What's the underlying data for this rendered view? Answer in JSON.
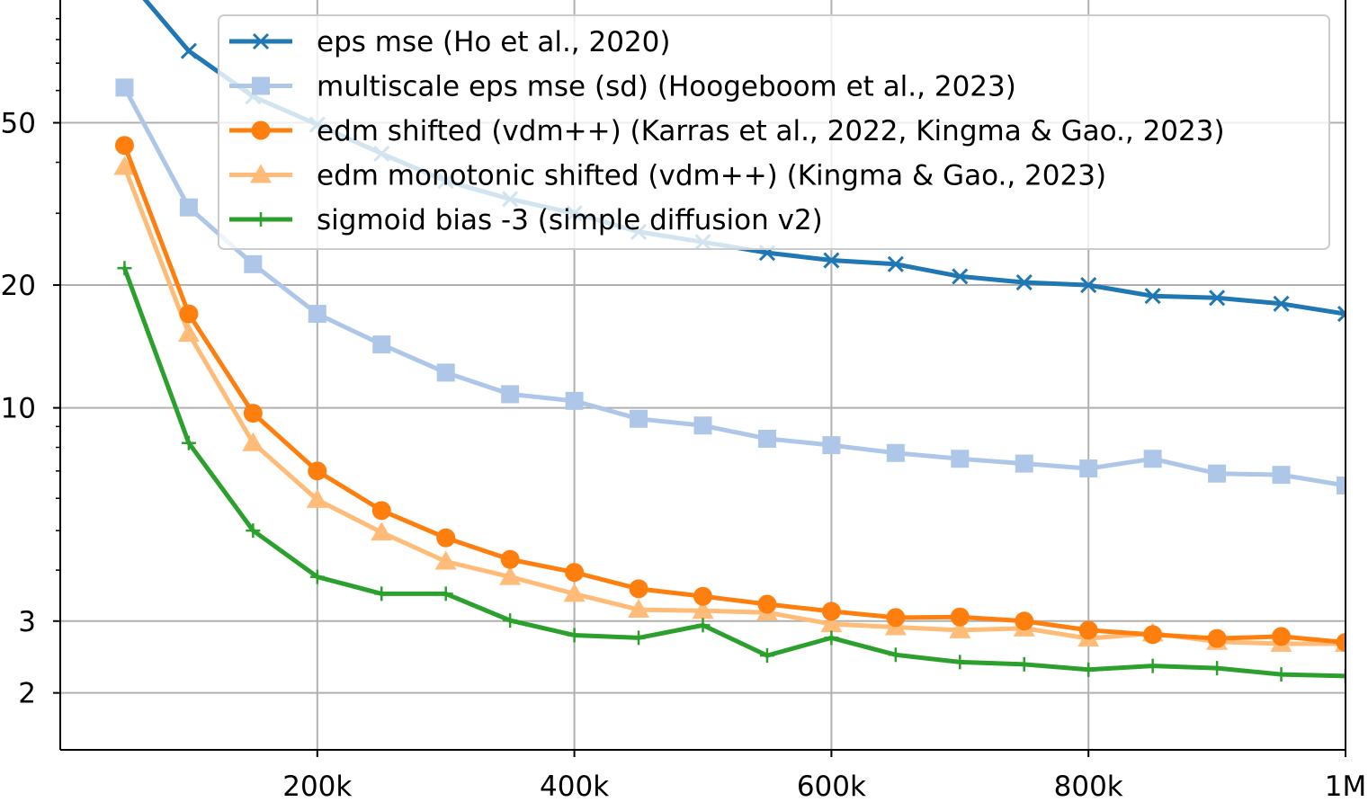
{
  "chart_data": {
    "type": "line",
    "title": "",
    "xlabel": "",
    "ylabel": "",
    "x_scale": "linear",
    "y_scale": "log",
    "xlim": [
      0,
      1000000
    ],
    "ylim": [
      1.45,
      100
    ],
    "grid": true,
    "legend_position": "top-right",
    "x_ticks": [
      {
        "value": 200000,
        "label": "200k"
      },
      {
        "value": 400000,
        "label": "400k"
      },
      {
        "value": 600000,
        "label": "600k"
      },
      {
        "value": 800000,
        "label": "800k"
      },
      {
        "value": 1000000,
        "label": "1M"
      }
    ],
    "y_ticks": [
      {
        "value": 2,
        "label": "2"
      },
      {
        "value": 3,
        "label": "3"
      },
      {
        "value": 10,
        "label": "10"
      },
      {
        "value": 20,
        "label": "20"
      },
      {
        "value": 50,
        "label": "50"
      }
    ],
    "x": [
      50000,
      100000,
      150000,
      200000,
      250000,
      300000,
      350000,
      400000,
      450000,
      500000,
      550000,
      600000,
      650000,
      700000,
      750000,
      800000,
      850000,
      900000,
      950000,
      1000000
    ],
    "series": [
      {
        "name": "eps mse (Ho et al., 2020)",
        "color": "#1f77b4",
        "marker": "x",
        "values": [
          115,
          75,
          58,
          49.5,
          42,
          36,
          32.5,
          30,
          27,
          25.5,
          24,
          23,
          22.5,
          21,
          20.3,
          20,
          18.8,
          18.6,
          18,
          17
        ]
      },
      {
        "name": "multiscale eps mse (sd) (Hoogeboom et al., 2023)",
        "color": "#aec7e8",
        "marker": "square",
        "values": [
          61,
          31,
          22.5,
          17,
          14.3,
          12.2,
          10.8,
          10.4,
          9.4,
          9.05,
          8.4,
          8.1,
          7.75,
          7.5,
          7.3,
          7.1,
          7.5,
          6.9,
          6.85,
          6.45
        ]
      },
      {
        "name": "edm shifted (vdm++) (Karras et al., 2022, Kingma & Gao., 2023)",
        "color": "#ff7f0e",
        "marker": "circle",
        "values": [
          44,
          17,
          9.7,
          7.0,
          5.6,
          4.8,
          4.25,
          3.95,
          3.6,
          3.45,
          3.3,
          3.17,
          3.06,
          3.07,
          3.0,
          2.85,
          2.78,
          2.72,
          2.75,
          2.66
        ]
      },
      {
        "name": "edm monotonic shifted (vdm++) (Kingma & Gao., 2023)",
        "color": "#ffbb78",
        "marker": "triangle",
        "values": [
          39,
          15.2,
          8.2,
          5.95,
          4.95,
          4.2,
          3.85,
          3.5,
          3.2,
          3.18,
          3.15,
          2.95,
          2.9,
          2.85,
          2.88,
          2.72,
          2.8,
          2.67,
          2.64,
          2.64
        ]
      },
      {
        "name": "sigmoid bias -3 (simple diffusion v2)",
        "color": "#2ca02c",
        "marker": "plus",
        "values": [
          22,
          8.2,
          5.0,
          3.85,
          3.5,
          3.5,
          3.01,
          2.77,
          2.73,
          2.93,
          2.47,
          2.73,
          2.48,
          2.38,
          2.35,
          2.28,
          2.33,
          2.3,
          2.22,
          2.2
        ]
      }
    ]
  }
}
